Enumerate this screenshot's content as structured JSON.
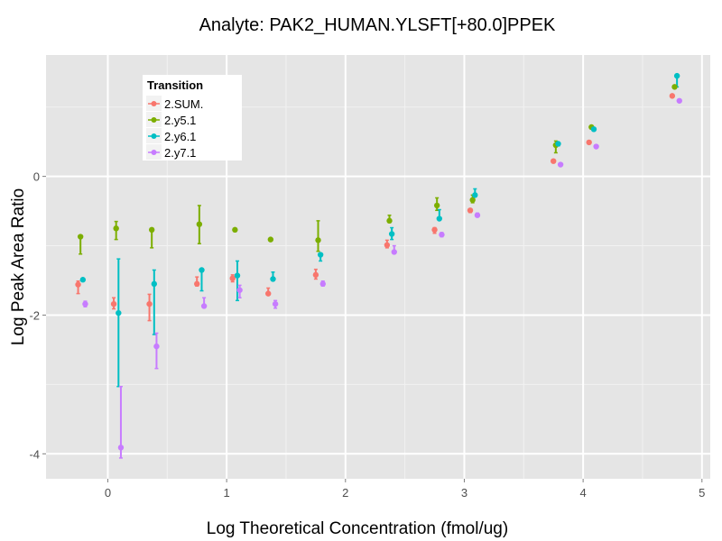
{
  "chart_data": {
    "type": "scatter",
    "title": "Analyte: PAK2_HUMAN.YLSFT[+80.0]PPEK",
    "xlabel": "Log Theoretical Concentration (fmol/ug)",
    "ylabel": "Log Peak Area Ratio",
    "xlim": [
      -0.52,
      5.07
    ],
    "ylim": [
      -4.36,
      1.75
    ],
    "xticks": [
      0,
      1,
      2,
      3,
      4,
      5
    ],
    "xtick_labels": [
      "0",
      "1",
      "2",
      "3",
      "4",
      "5"
    ],
    "yticks": [
      0,
      -2,
      -4
    ],
    "ytick_labels": [
      "0",
      "-2",
      "-4"
    ],
    "x_minor_grid": [
      0.5,
      1.5,
      2.5,
      3.5,
      4.5
    ],
    "y_minor_grid": [
      1,
      -1,
      -3
    ],
    "grid": true,
    "error_bars": true,
    "dodge_offsets": {
      "2.SUM.": -0.03,
      "2.y5.1": -0.01,
      "2.y6.1": 0.01,
      "2.y7.1": 0.03
    },
    "legend": {
      "title": "Transition",
      "placement": "top-left (inside)",
      "entries": [
        "2.SUM.",
        "2.y5.1",
        "2.y6.1",
        "2.y7.1"
      ]
    },
    "x": [
      -0.22,
      0.08,
      0.38,
      0.78,
      1.08,
      1.38,
      1.78,
      2.38,
      2.78,
      3.08,
      3.78,
      4.08,
      4.78
    ],
    "series": [
      {
        "name": "2.SUM.",
        "color": "#F8766D",
        "values": [
          -1.56,
          -1.84,
          -1.84,
          -1.55,
          -1.47,
          -1.69,
          -1.42,
          -0.99,
          -0.77,
          -0.49,
          0.22,
          0.49,
          1.16
        ],
        "lower": [
          -1.69,
          -1.91,
          -2.08,
          -1.58,
          -1.52,
          -1.69,
          -1.48,
          -1.03,
          -0.82,
          -0.52,
          0.22,
          0.49,
          1.16
        ],
        "upper": [
          -1.51,
          -1.75,
          -1.7,
          -1.45,
          -1.42,
          -1.61,
          -1.34,
          -0.92,
          -0.74,
          -0.47,
          0.22,
          0.49,
          1.16
        ]
      },
      {
        "name": "2.y5.1",
        "color": "#7CAE00",
        "values": [
          -0.87,
          -0.75,
          -0.77,
          -0.69,
          -0.77,
          -0.91,
          -0.92,
          -0.64,
          -0.42,
          -0.34,
          0.45,
          0.71,
          1.29
        ],
        "lower": [
          -1.12,
          -0.91,
          -1.03,
          -0.97,
          -0.77,
          -0.91,
          -1.08,
          -0.64,
          -0.49,
          -0.38,
          0.34,
          0.69,
          1.27
        ],
        "upper": [
          -0.87,
          -0.65,
          -0.77,
          -0.42,
          -0.77,
          -0.91,
          -0.64,
          -0.56,
          -0.31,
          -0.27,
          0.51,
          0.73,
          1.31
        ]
      },
      {
        "name": "2.y6.1",
        "color": "#00BFC4",
        "values": [
          -1.49,
          -1.97,
          -1.55,
          -1.35,
          -1.43,
          -1.48,
          -1.13,
          -0.83,
          -0.61,
          -0.27,
          0.47,
          0.68,
          1.45
        ],
        "lower": [
          -1.49,
          -3.03,
          -2.28,
          -1.65,
          -1.79,
          -1.48,
          -1.22,
          -0.91,
          -0.61,
          -0.27,
          0.44,
          0.68,
          1.29
        ],
        "upper": [
          -1.49,
          -1.19,
          -1.35,
          -1.35,
          -1.22,
          -1.38,
          -1.13,
          -0.74,
          -0.48,
          -0.18,
          0.49,
          0.68,
          1.45
        ]
      },
      {
        "name": "2.y7.1",
        "color": "#C77CFF",
        "values": [
          -1.84,
          -3.91,
          -2.45,
          -1.87,
          -1.64,
          -1.84,
          -1.55,
          -1.09,
          -0.84,
          -0.56,
          0.17,
          0.43,
          1.09
        ],
        "lower": [
          -1.88,
          -4.06,
          -2.77,
          -1.87,
          -1.75,
          -1.9,
          -1.58,
          -1.09,
          -0.87,
          -0.58,
          0.17,
          0.43,
          1.09
        ],
        "upper": [
          -1.8,
          -3.03,
          -2.26,
          -1.75,
          -1.57,
          -1.79,
          -1.51,
          -1.0,
          -0.81,
          -0.53,
          0.17,
          0.43,
          1.09
        ]
      }
    ]
  }
}
